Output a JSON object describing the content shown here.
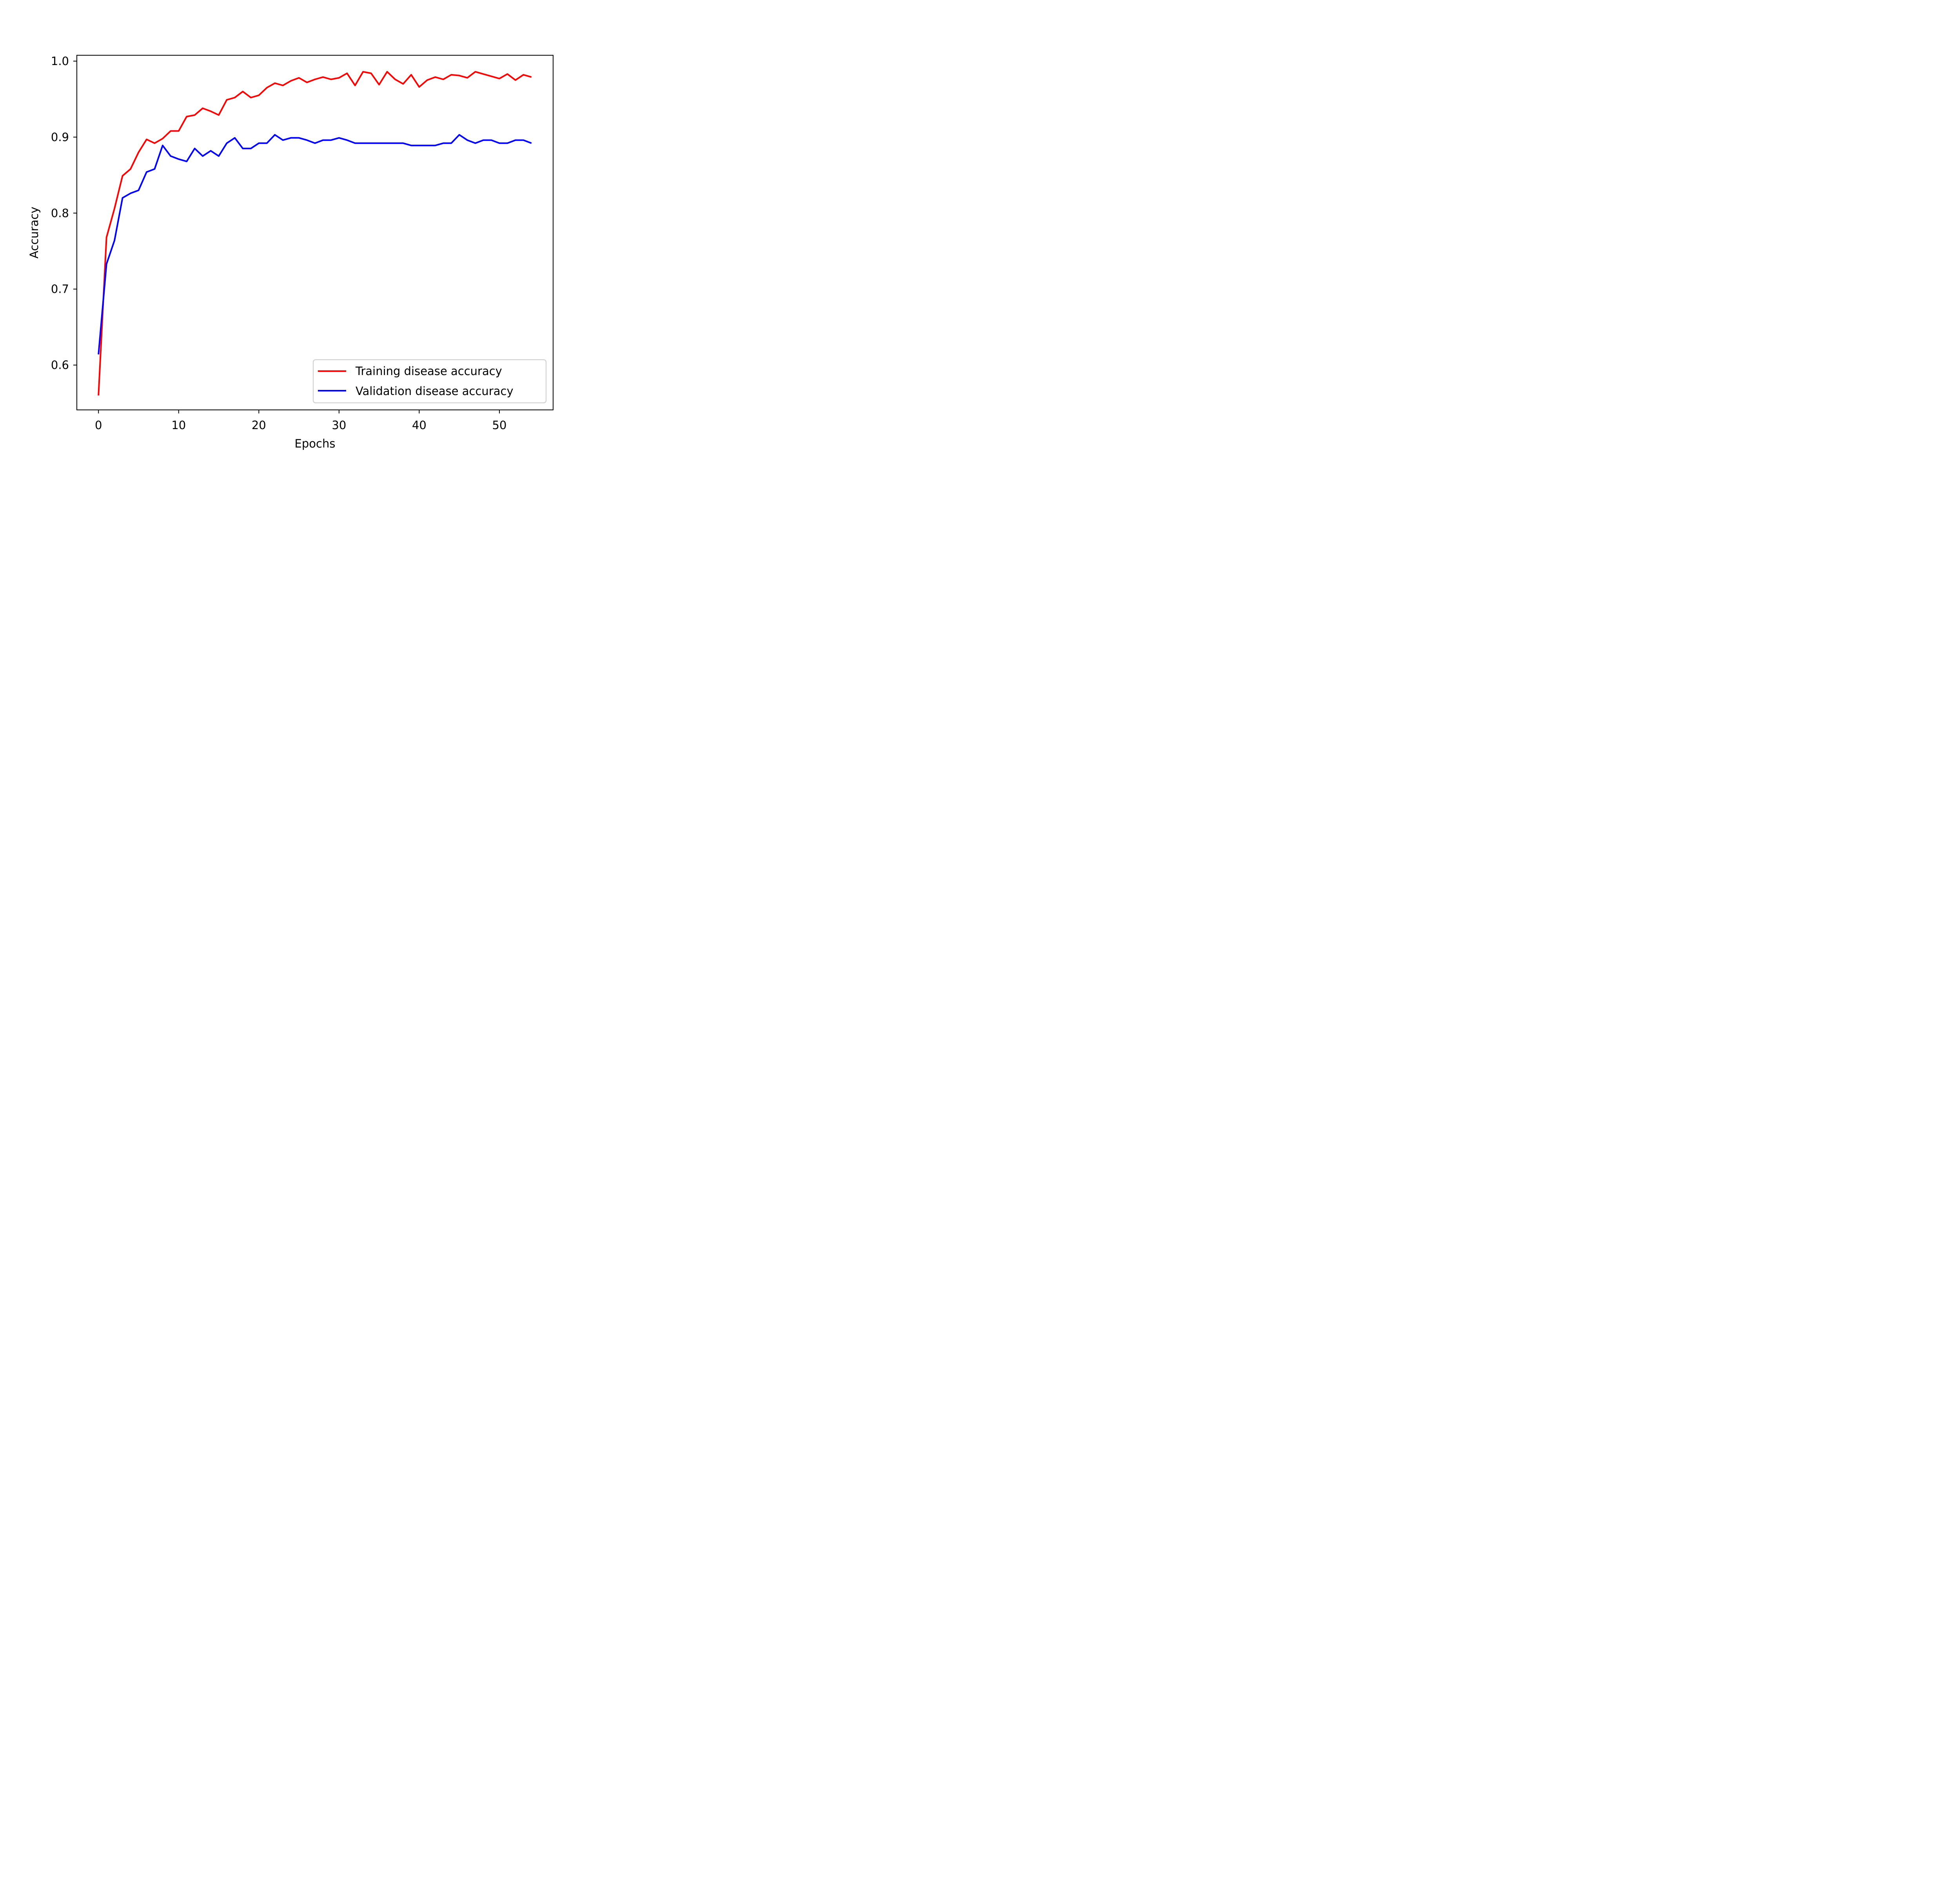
{
  "chart_data": {
    "type": "line",
    "title": "",
    "xlabel": "Epochs",
    "ylabel": "Accuracy",
    "xlim": [
      -2.7,
      56.7
    ],
    "ylim": [
      0.541,
      1.0077
    ],
    "x_ticks": [
      0,
      10,
      20,
      30,
      40,
      50
    ],
    "x_tick_labels": [
      "0",
      "10",
      "20",
      "30",
      "40",
      "50"
    ],
    "y_ticks": [
      0.6,
      0.7,
      0.8,
      0.9,
      1.0
    ],
    "y_tick_labels": [
      "0.6",
      "0.7",
      "0.8",
      "0.9",
      "1.0"
    ],
    "grid": false,
    "legend_position": "lower right",
    "series": [
      {
        "name": "Training disease accuracy",
        "color": "#ff0000",
        "x": [
          0,
          1,
          2,
          3,
          4,
          5,
          6,
          7,
          8,
          9,
          10,
          11,
          12,
          13,
          14,
          15,
          16,
          17,
          18,
          19,
          20,
          21,
          22,
          23,
          24,
          25,
          26,
          27,
          28,
          29,
          30,
          31,
          32,
          33,
          34,
          35,
          36,
          37,
          38,
          39,
          40,
          41,
          42,
          43,
          44,
          45,
          46,
          47,
          48,
          49,
          50,
          51,
          52,
          53,
          54
        ],
        "values": [
          0.56,
          0.768,
          0.806,
          0.849,
          0.858,
          0.88,
          0.897,
          0.892,
          0.898,
          0.908,
          0.908,
          0.927,
          0.929,
          0.938,
          0.934,
          0.929,
          0.949,
          0.952,
          0.96,
          0.952,
          0.955,
          0.965,
          0.971,
          0.968,
          0.974,
          0.978,
          0.972,
          0.976,
          0.979,
          0.976,
          0.978,
          0.984,
          0.968,
          0.986,
          0.984,
          0.969,
          0.986,
          0.976,
          0.97,
          0.982,
          0.966,
          0.975,
          0.979,
          0.976,
          0.982,
          0.981,
          0.978,
          0.986,
          0.983,
          0.98,
          0.977,
          0.983,
          0.975,
          0.982,
          0.979
        ]
      },
      {
        "name": "Validation disease accuracy",
        "color": "#0000ff",
        "x": [
          0,
          1,
          2,
          3,
          4,
          5,
          6,
          7,
          8,
          9,
          10,
          11,
          12,
          13,
          14,
          15,
          16,
          17,
          18,
          19,
          20,
          21,
          22,
          23,
          24,
          25,
          26,
          27,
          28,
          29,
          30,
          31,
          32,
          33,
          34,
          35,
          36,
          37,
          38,
          39,
          40,
          41,
          42,
          43,
          44,
          45,
          46,
          47,
          48,
          49,
          50,
          51,
          52,
          53,
          54
        ],
        "values": [
          0.614,
          0.733,
          0.764,
          0.82,
          0.826,
          0.83,
          0.854,
          0.858,
          0.889,
          0.875,
          0.871,
          0.868,
          0.885,
          0.875,
          0.882,
          0.875,
          0.892,
          0.899,
          0.885,
          0.885,
          0.892,
          0.892,
          0.903,
          0.896,
          0.899,
          0.899,
          0.896,
          0.892,
          0.896,
          0.896,
          0.899,
          0.896,
          0.892,
          0.892,
          0.892,
          0.892,
          0.892,
          0.892,
          0.892,
          0.889,
          0.889,
          0.889,
          0.889,
          0.892,
          0.892,
          0.903,
          0.896,
          0.892,
          0.896,
          0.896,
          0.892,
          0.892,
          0.896,
          0.896,
          0.892
        ]
      }
    ]
  }
}
